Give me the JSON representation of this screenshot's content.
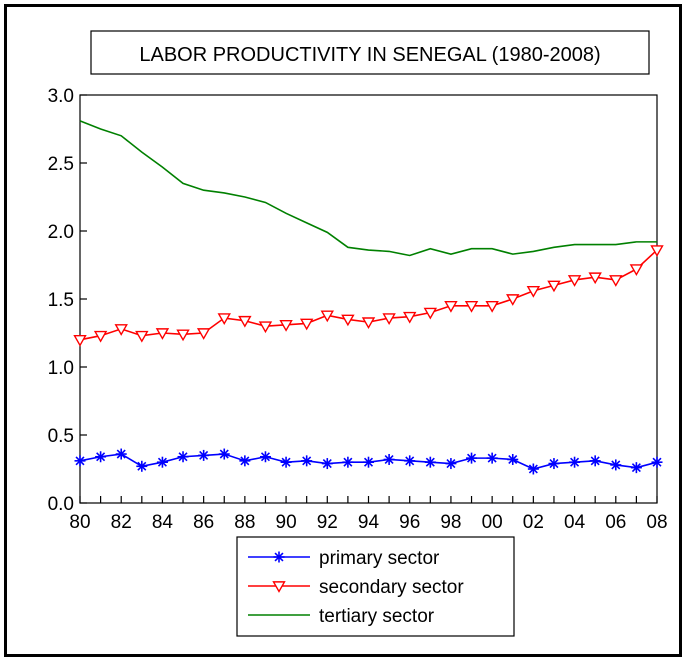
{
  "chart_data": {
    "type": "line",
    "title": "LABOR PRODUCTIVITY IN SENEGAL (1980-2008)",
    "xlabel": "",
    "ylabel": "",
    "ylim": [
      0.0,
      3.0
    ],
    "yticks": [
      "0.0",
      "0.5",
      "1.0",
      "1.5",
      "2.0",
      "2.5",
      "3.0"
    ],
    "xlim": [
      1980,
      2008
    ],
    "xticks": [
      "80",
      "82",
      "84",
      "86",
      "88",
      "90",
      "92",
      "94",
      "96",
      "98",
      "00",
      "02",
      "04",
      "06",
      "08"
    ],
    "grid": false,
    "legend_position": "bottom-center",
    "x": [
      1980,
      1981,
      1982,
      1983,
      1984,
      1985,
      1986,
      1987,
      1988,
      1989,
      1990,
      1991,
      1992,
      1993,
      1994,
      1995,
      1996,
      1997,
      1998,
      1999,
      2000,
      2001,
      2002,
      2003,
      2004,
      2005,
      2006,
      2007,
      2008
    ],
    "series": [
      {
        "name": "primary sector",
        "color": "#0000ff",
        "marker": "asterisk",
        "values": [
          0.31,
          0.34,
          0.36,
          0.27,
          0.3,
          0.34,
          0.35,
          0.36,
          0.31,
          0.34,
          0.3,
          0.31,
          0.29,
          0.3,
          0.3,
          0.32,
          0.31,
          0.3,
          0.29,
          0.33,
          0.33,
          0.32,
          0.25,
          0.29,
          0.3,
          0.31,
          0.28,
          0.26,
          0.3
        ]
      },
      {
        "name": "secondary sector",
        "color": "#ff0000",
        "marker": "triangle-down",
        "values": [
          1.2,
          1.23,
          1.28,
          1.23,
          1.25,
          1.24,
          1.25,
          1.36,
          1.34,
          1.3,
          1.31,
          1.32,
          1.38,
          1.35,
          1.33,
          1.36,
          1.37,
          1.4,
          1.45,
          1.45,
          1.45,
          1.5,
          1.56,
          1.6,
          1.64,
          1.66,
          1.64,
          1.72,
          1.86
        ]
      },
      {
        "name": "tertiary sector",
        "color": "#008000",
        "marker": "none",
        "values": [
          2.81,
          2.75,
          2.7,
          2.58,
          2.47,
          2.35,
          2.3,
          2.28,
          2.25,
          2.21,
          2.13,
          2.06,
          1.99,
          1.88,
          1.86,
          1.85,
          1.82,
          1.87,
          1.83,
          1.87,
          1.87,
          1.83,
          1.85,
          1.88,
          1.9,
          1.9,
          1.9,
          1.92,
          1.92
        ]
      }
    ]
  }
}
